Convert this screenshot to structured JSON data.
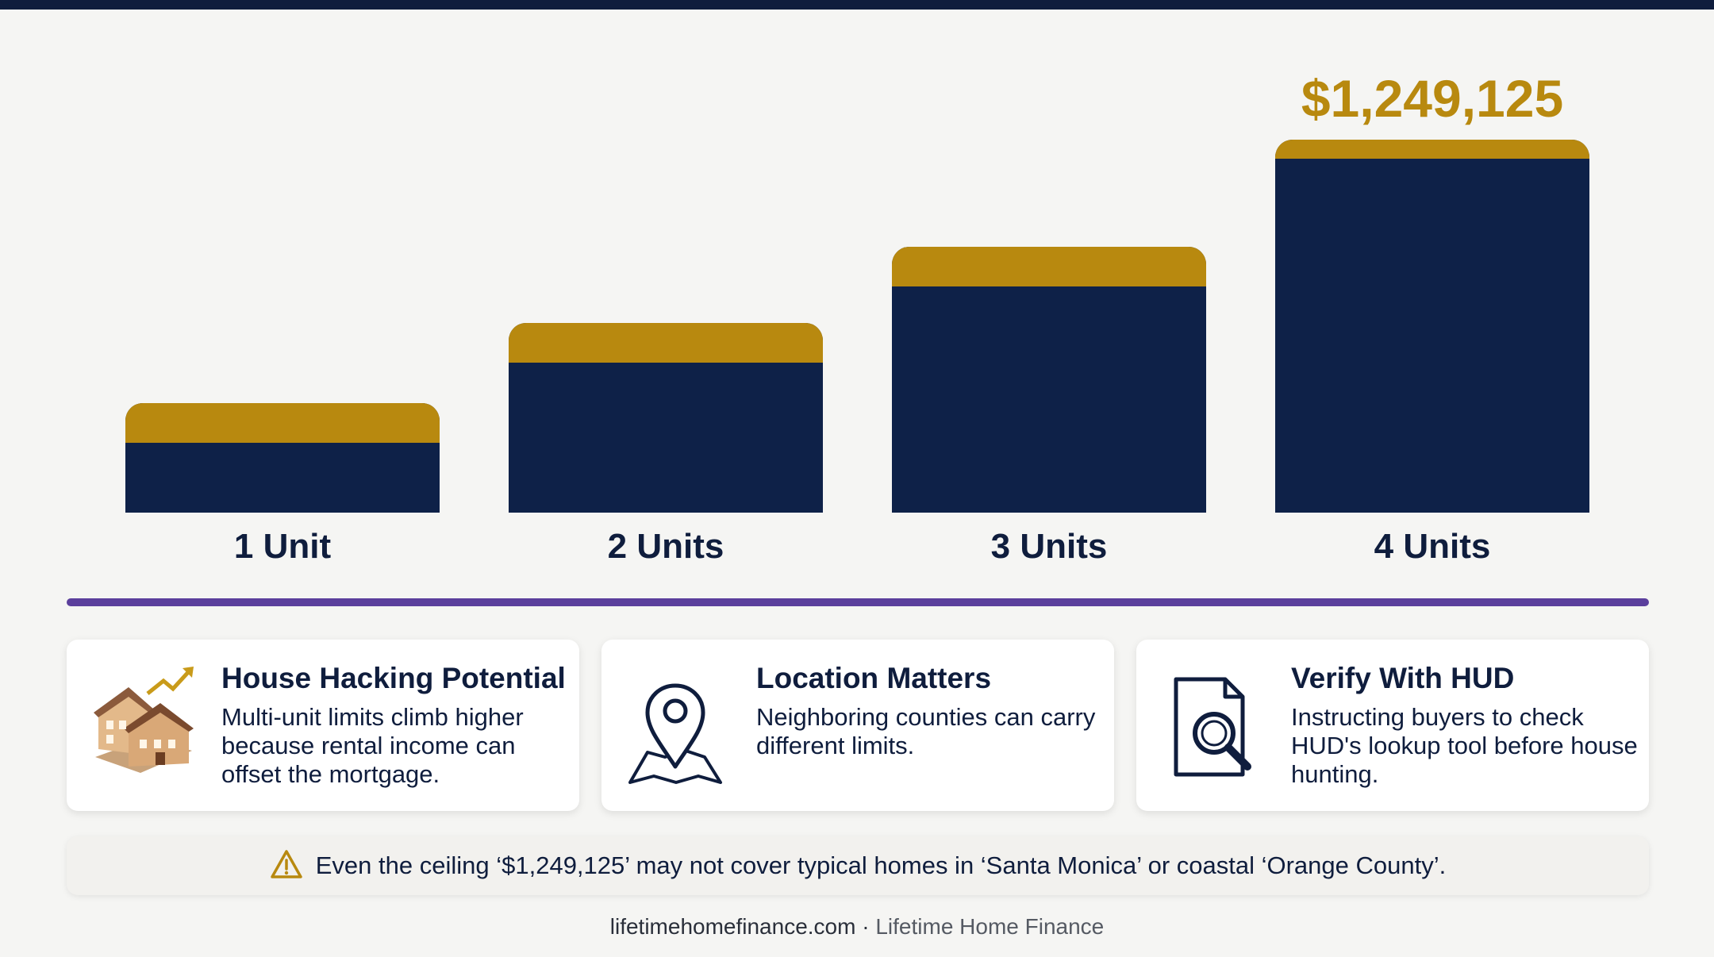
{
  "chart_data": {
    "type": "bar",
    "categories": [
      "1 Unit",
      "2 Units",
      "3 Units",
      "4 Units"
    ],
    "values": [
      650000,
      832000,
      1005000,
      1249125
    ],
    "highlight_label": "$1,249,125",
    "highlight_index": 3,
    "ylim": [
      400000,
      1300000
    ],
    "grid": false,
    "colors": {
      "bar": "#0e2148",
      "cap": "#b8890f",
      "divider": "#5b3f9c"
    }
  },
  "cards": [
    {
      "icon": "houses-growth-icon",
      "title": "House Hacking Potential",
      "body": "Multi-unit limits climb higher because rental income can offset the mortgage."
    },
    {
      "icon": "map-pin-icon",
      "title": "Location Matters",
      "body": "Neighboring counties can carry different limits."
    },
    {
      "icon": "document-search-icon",
      "title": "Verify With HUD",
      "body": "Instructing buyers to check HUD's lookup tool before house hunting."
    }
  ],
  "warning": {
    "icon": "warning-icon",
    "text": "Even the ceiling ‘$1,249,125’ may not cover typical homes in ‘Santa Monica’ or coastal ‘Orange County’."
  },
  "footer": {
    "site": "lifetimehomefinance.com",
    "separator": "·",
    "brand": "Lifetime Home Finance"
  }
}
